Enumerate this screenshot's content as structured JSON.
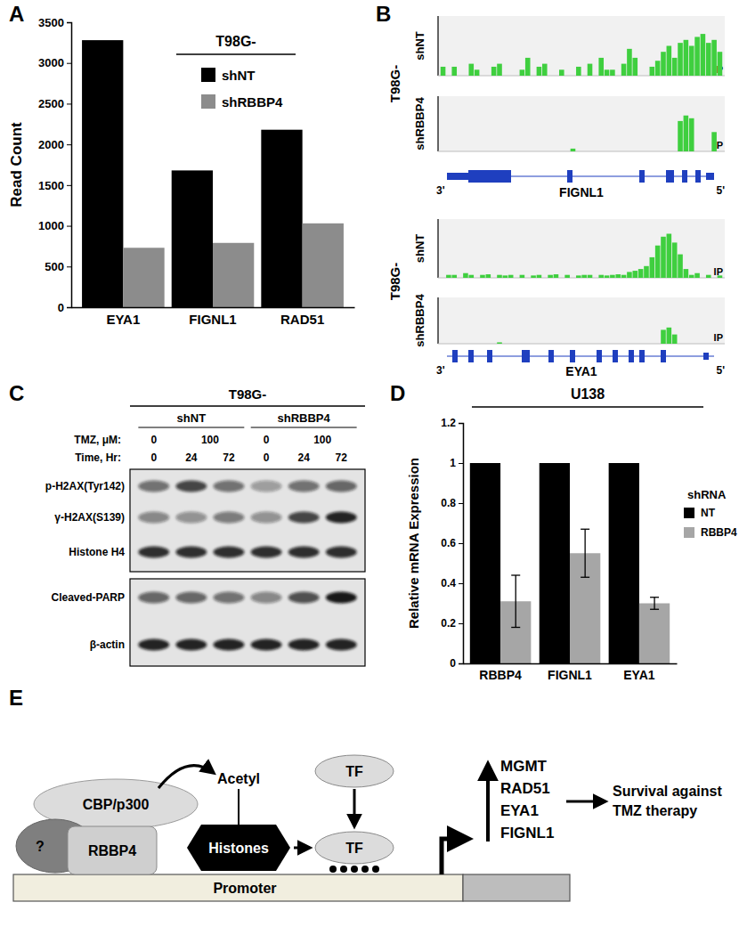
{
  "panel_labels": [
    "A",
    "B",
    "C",
    "D",
    "E"
  ],
  "chart_data": [
    {
      "type": "bar",
      "title": "T98G-",
      "y_label": "Read Count",
      "categories": [
        "EYA1",
        "FIGNL1",
        "RAD51"
      ],
      "series": [
        {
          "name": "shNT",
          "color": "#000000",
          "values": [
            3280,
            1680,
            2180
          ]
        },
        {
          "name": "shRBBP4",
          "color": "#8c8c8c",
          "values": [
            730,
            790,
            1030
          ]
        }
      ],
      "ylim": [
        0,
        3500
      ],
      "yticks": [
        0,
        500,
        1000,
        1500,
        2000,
        2500,
        3000,
        3500
      ],
      "legend": "top-right"
    },
    {
      "type": "bar",
      "title": "U138",
      "y_label": "Relative mRNA Expression",
      "legend_title": "shRNA",
      "categories": [
        "RBBP4",
        "FIGNL1",
        "EYA1"
      ],
      "series": [
        {
          "name": "NT",
          "color": "#000000",
          "values": [
            1,
            1,
            1
          ]
        },
        {
          "name": "RBBP4",
          "color": "#a6a6a6",
          "values": [
            0.31,
            0.55,
            0.3
          ],
          "errors": [
            0.13,
            0.12,
            0.03
          ]
        }
      ],
      "ylim": [
        0,
        1.2
      ],
      "yticks": [
        0,
        0.2,
        0.4,
        0.6,
        0.8,
        1,
        1.2
      ],
      "legend": "right"
    }
  ],
  "tracks": {
    "title": "T98G-",
    "label": "IP",
    "ends": [
      "3'",
      "5'"
    ],
    "ylim": [
      0,
      1
    ],
    "genes": [
      {
        "name": "FIGNL1",
        "span": [
          0,
          100
        ],
        "utr": [
          [
            0,
            8
          ],
          [
            97,
            100
          ]
        ],
        "cds": [
          [
            8,
            24
          ],
          [
            45,
            47
          ],
          [
            72,
            74
          ],
          [
            82,
            85
          ],
          [
            88,
            90
          ],
          [
            93,
            95
          ]
        ],
        "rows": [
          {
            "name": "shNT",
            "signal": [
              0.15,
              0,
              0.15,
              0,
              0,
              0.2,
              0.1,
              0,
              0,
              0.15,
              0.2,
              0,
              0,
              0,
              0.1,
              0.3,
              0,
              0.15,
              0.2,
              0,
              0,
              0.1,
              0,
              0,
              0.15,
              0,
              0.2,
              0,
              0.3,
              0.1,
              0.1,
              0,
              0.2,
              0.45,
              0.3,
              0,
              0,
              0.15,
              0.25,
              0.4,
              0.5,
              0.3,
              0.55,
              0.6,
              0.5,
              0.65,
              0.7,
              0.55,
              0.6,
              0.4
            ]
          },
          {
            "name": "shRBBP4",
            "signal": [
              0,
              0,
              0,
              0,
              0,
              0,
              0,
              0,
              0,
              0,
              0,
              0,
              0,
              0,
              0,
              0,
              0,
              0,
              0,
              0,
              0,
              0,
              0,
              0.05,
              0,
              0,
              0,
              0,
              0,
              0,
              0,
              0,
              0,
              0,
              0,
              0,
              0,
              0,
              0,
              0,
              0,
              0,
              0.55,
              0.65,
              0.6,
              0,
              0,
              0,
              0.35,
              0
            ]
          }
        ]
      },
      {
        "name": "EYA1",
        "span": [
          0,
          100
        ],
        "utr": [
          [
            96,
            98
          ]
        ],
        "cds": [
          [
            2,
            4
          ],
          [
            8,
            10
          ],
          [
            15,
            17
          ],
          [
            28,
            31
          ],
          [
            38,
            40
          ],
          [
            46,
            48
          ],
          [
            56,
            58
          ],
          [
            62,
            64
          ],
          [
            68,
            70
          ],
          [
            72,
            74
          ],
          [
            80,
            82
          ]
        ],
        "rows": [
          {
            "name": "shNT",
            "signal": [
              0,
              0.05,
              0.05,
              0,
              0.08,
              0.05,
              0,
              0.05,
              0.06,
              0,
              0.05,
              0.04,
              0.05,
              0,
              0.05,
              0,
              0.04,
              0.05,
              0,
              0.05,
              0.06,
              0,
              0.05,
              0,
              0.04,
              0.05,
              0.05,
              0,
              0.05,
              0.04,
              0.05,
              0.06,
              0.05,
              0.1,
              0.12,
              0.15,
              0.2,
              0.35,
              0.55,
              0.7,
              0.75,
              0.6,
              0.4,
              0.15,
              0.05,
              0.08,
              0,
              0.05,
              0,
              0.04
            ]
          },
          {
            "name": "shRBBP4",
            "signal": [
              0,
              0,
              0,
              0,
              0,
              0,
              0,
              0,
              0,
              0,
              0.03,
              0,
              0,
              0,
              0,
              0,
              0,
              0,
              0,
              0,
              0,
              0,
              0,
              0,
              0,
              0,
              0,
              0,
              0,
              0,
              0,
              0,
              0,
              0,
              0,
              0,
              0,
              0,
              0,
              0.3,
              0.35,
              0.2,
              0,
              0,
              0,
              0,
              0,
              0,
              0,
              0
            ]
          }
        ]
      }
    ]
  },
  "blot": {
    "title": "T98G-",
    "groups": [
      "shNT",
      "shRBBP4"
    ],
    "tmz_label": "TMZ, μM:",
    "tmz": [
      0,
      100,
      0,
      100
    ],
    "time_label": "Time, Hr:",
    "time": [
      0,
      24,
      72,
      0,
      24,
      72
    ],
    "rows": [
      {
        "name": "p-H2AX(Tyr142)",
        "intensity": [
          0.55,
          0.75,
          0.55,
          0.35,
          0.55,
          0.6
        ]
      },
      {
        "name": "γ-H2AX(S139)",
        "intensity": [
          0.45,
          0.4,
          0.5,
          0.4,
          0.75,
          0.9
        ]
      },
      {
        "name": "Histone H4",
        "intensity": [
          0.85,
          0.85,
          0.85,
          0.85,
          0.85,
          0.85
        ]
      },
      {
        "name": "Cleaved-PARP",
        "intensity": [
          0.6,
          0.6,
          0.55,
          0.45,
          0.7,
          0.95
        ]
      },
      {
        "name": "β-actin",
        "intensity": [
          0.9,
          0.9,
          0.9,
          0.9,
          0.9,
          0.9
        ]
      }
    ]
  },
  "diagram": {
    "cbp": "CBP/p300",
    "unknown": "?",
    "rbbp4": "RBBP4",
    "acetyl": "Acetyl",
    "histones": "Histones",
    "tf": [
      "TF",
      "TF"
    ],
    "promoter": "Promoter",
    "genes": [
      "MGMT",
      "RAD51",
      "EYA1",
      "FIGNL1"
    ],
    "outcome": [
      "Survival against",
      "TMZ therapy"
    ]
  }
}
